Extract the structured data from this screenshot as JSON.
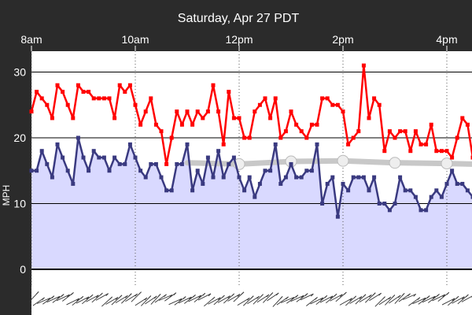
{
  "header": {
    "date_label": "Saturday, Apr 27 PDT"
  },
  "colors": {
    "background": "#2b2b2b",
    "plot_bg": "#ffffff",
    "avg_fill": "#d9d9ff",
    "avg_line": "#3a3a80",
    "gust_line": "#ff0000",
    "forecast_line": "#c8c8c8",
    "gridline": "#000000"
  },
  "chart_data": {
    "type": "line",
    "xlabel": "",
    "ylabel": "MPH",
    "x_ticks": [
      {
        "label": "8am",
        "hour": 8
      },
      {
        "label": "10am",
        "hour": 10
      },
      {
        "label": "12pm",
        "hour": 12
      },
      {
        "label": "2pm",
        "hour": 14
      },
      {
        "label": "4pm",
        "hour": 16
      }
    ],
    "x_range_hours": [
      8.0,
      16.5
    ],
    "y_ticks": [
      0,
      10,
      20,
      30
    ],
    "ylim": [
      0,
      33
    ],
    "series": [
      {
        "role": "gust",
        "color": "#ff0000",
        "points": [
          [
            8.0,
            24
          ],
          [
            8.1,
            27
          ],
          [
            8.2,
            26
          ],
          [
            8.3,
            25
          ],
          [
            8.4,
            23
          ],
          [
            8.5,
            28
          ],
          [
            8.6,
            27
          ],
          [
            8.7,
            25
          ],
          [
            8.8,
            23
          ],
          [
            8.9,
            28
          ],
          [
            9.0,
            27
          ],
          [
            9.1,
            27
          ],
          [
            9.2,
            26
          ],
          [
            9.3,
            26
          ],
          [
            9.4,
            26
          ],
          [
            9.5,
            26
          ],
          [
            9.6,
            23
          ],
          [
            9.7,
            28
          ],
          [
            9.8,
            27
          ],
          [
            9.9,
            28
          ],
          [
            10.0,
            25
          ],
          [
            10.1,
            22
          ],
          [
            10.2,
            24
          ],
          [
            10.3,
            26
          ],
          [
            10.4,
            22
          ],
          [
            10.5,
            21
          ],
          [
            10.6,
            16
          ],
          [
            10.7,
            20
          ],
          [
            10.8,
            24
          ],
          [
            10.9,
            22
          ],
          [
            11.0,
            24
          ],
          [
            11.1,
            22
          ],
          [
            11.2,
            24
          ],
          [
            11.3,
            23
          ],
          [
            11.4,
            24
          ],
          [
            11.5,
            28
          ],
          [
            11.6,
            24
          ],
          [
            11.7,
            19
          ],
          [
            11.8,
            27
          ],
          [
            11.9,
            23
          ],
          [
            12.0,
            23
          ],
          [
            12.1,
            20
          ],
          [
            12.2,
            20
          ],
          [
            12.3,
            24
          ],
          [
            12.4,
            25
          ],
          [
            12.5,
            26
          ],
          [
            12.6,
            23
          ],
          [
            12.7,
            26
          ],
          [
            12.8,
            20
          ],
          [
            12.9,
            21
          ],
          [
            13.0,
            24
          ],
          [
            13.1,
            22
          ],
          [
            13.2,
            21
          ],
          [
            13.3,
            20
          ],
          [
            13.4,
            22
          ],
          [
            13.5,
            22
          ],
          [
            13.6,
            26
          ],
          [
            13.7,
            26
          ],
          [
            13.8,
            25
          ],
          [
            13.9,
            25
          ],
          [
            14.0,
            24
          ],
          [
            14.1,
            19
          ],
          [
            14.2,
            20
          ],
          [
            14.3,
            21
          ],
          [
            14.4,
            31
          ],
          [
            14.5,
            23
          ],
          [
            14.6,
            26
          ],
          [
            14.7,
            25
          ],
          [
            14.8,
            18
          ],
          [
            14.9,
            21
          ],
          [
            15.0,
            20
          ],
          [
            15.1,
            21
          ],
          [
            15.2,
            21
          ],
          [
            15.3,
            18
          ],
          [
            15.4,
            21
          ],
          [
            15.5,
            19
          ],
          [
            15.6,
            19
          ],
          [
            15.7,
            22
          ],
          [
            15.8,
            18
          ],
          [
            15.9,
            18
          ],
          [
            16.0,
            18
          ],
          [
            16.1,
            17
          ],
          [
            16.2,
            20
          ],
          [
            16.3,
            23
          ],
          [
            16.4,
            22
          ],
          [
            16.5,
            17
          ]
        ]
      },
      {
        "role": "average",
        "color": "#3a3a80",
        "points": [
          [
            8.0,
            15
          ],
          [
            8.1,
            15
          ],
          [
            8.2,
            18
          ],
          [
            8.3,
            16
          ],
          [
            8.4,
            14
          ],
          [
            8.5,
            19
          ],
          [
            8.6,
            17
          ],
          [
            8.7,
            15
          ],
          [
            8.8,
            13
          ],
          [
            8.9,
            20
          ],
          [
            9.0,
            17
          ],
          [
            9.1,
            15
          ],
          [
            9.2,
            18
          ],
          [
            9.3,
            17
          ],
          [
            9.4,
            17
          ],
          [
            9.5,
            15
          ],
          [
            9.6,
            17
          ],
          [
            9.7,
            16
          ],
          [
            9.8,
            16
          ],
          [
            9.9,
            19
          ],
          [
            10.0,
            17
          ],
          [
            10.1,
            15
          ],
          [
            10.2,
            14
          ],
          [
            10.3,
            16
          ],
          [
            10.4,
            16
          ],
          [
            10.5,
            14
          ],
          [
            10.6,
            12
          ],
          [
            10.7,
            12
          ],
          [
            10.8,
            16
          ],
          [
            10.9,
            16
          ],
          [
            11.0,
            19
          ],
          [
            11.1,
            12
          ],
          [
            11.2,
            15
          ],
          [
            11.3,
            13
          ],
          [
            11.4,
            17
          ],
          [
            11.5,
            14
          ],
          [
            11.6,
            18
          ],
          [
            11.7,
            14
          ],
          [
            11.8,
            16
          ],
          [
            11.9,
            17
          ],
          [
            12.0,
            14
          ],
          [
            12.1,
            12
          ],
          [
            12.2,
            14
          ],
          [
            12.3,
            11
          ],
          [
            12.4,
            13
          ],
          [
            12.5,
            15
          ],
          [
            12.6,
            15
          ],
          [
            12.7,
            19
          ],
          [
            12.8,
            13
          ],
          [
            12.9,
            14
          ],
          [
            13.0,
            16
          ],
          [
            13.1,
            14
          ],
          [
            13.2,
            14
          ],
          [
            13.3,
            15
          ],
          [
            13.4,
            15
          ],
          [
            13.5,
            19
          ],
          [
            13.6,
            10
          ],
          [
            13.7,
            13
          ],
          [
            13.8,
            14
          ],
          [
            13.9,
            8
          ],
          [
            14.0,
            13
          ],
          [
            14.1,
            12
          ],
          [
            14.2,
            14
          ],
          [
            14.3,
            14
          ],
          [
            14.4,
            14
          ],
          [
            14.5,
            12
          ],
          [
            14.6,
            14
          ],
          [
            14.7,
            10
          ],
          [
            14.8,
            10
          ],
          [
            14.9,
            9
          ],
          [
            15.0,
            10
          ],
          [
            15.1,
            14
          ],
          [
            15.2,
            12
          ],
          [
            15.3,
            12
          ],
          [
            15.4,
            11
          ],
          [
            15.5,
            9
          ],
          [
            15.6,
            9
          ],
          [
            15.7,
            11
          ],
          [
            15.8,
            12
          ],
          [
            15.9,
            11
          ],
          [
            16.0,
            13
          ],
          [
            16.1,
            15
          ],
          [
            16.2,
            13
          ],
          [
            16.3,
            13
          ],
          [
            16.4,
            12
          ],
          [
            16.5,
            11
          ]
        ]
      },
      {
        "role": "forecast",
        "color": "#c8c8c8",
        "points": [
          [
            11.0,
            16.2
          ],
          [
            12.0,
            16.0
          ],
          [
            13.0,
            16.4
          ],
          [
            14.0,
            16.5
          ],
          [
            15.0,
            16.2
          ],
          [
            16.0,
            16.1
          ],
          [
            16.5,
            16.0
          ]
        ],
        "markers": [
          [
            12.0,
            16.0
          ],
          [
            13.0,
            16.4
          ],
          [
            14.0,
            16.5
          ],
          [
            15.0,
            16.2
          ],
          [
            16.0,
            16.1
          ]
        ]
      }
    ],
    "wind_direction": "barbs along bottom, mostly from the west/southwest"
  }
}
